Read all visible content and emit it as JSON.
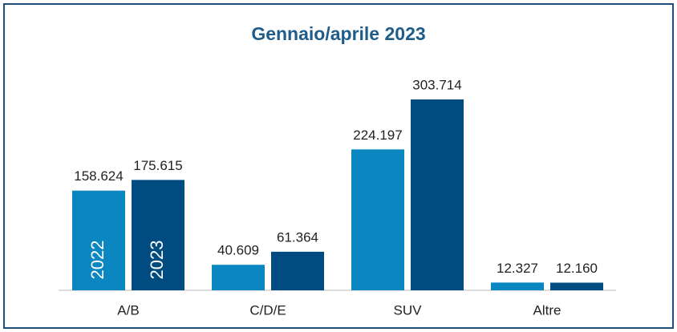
{
  "chart_data": {
    "type": "bar",
    "title": "Gennaio/aprile 2023",
    "categories": [
      "A/B",
      "C/D/E",
      "SUV",
      "Altre"
    ],
    "series": [
      {
        "name": "2022",
        "color": "#0a87c0",
        "values": [
          158624,
          40609,
          224197,
          12327
        ],
        "value_labels": [
          "158.624",
          "40.609",
          "224.197",
          "12.327"
        ]
      },
      {
        "name": "2023",
        "color": "#004b7f",
        "values": [
          175615,
          61364,
          303714,
          12160
        ],
        "value_labels": [
          "175.615",
          "61.364",
          "303.714",
          "12.160"
        ]
      }
    ]
  }
}
